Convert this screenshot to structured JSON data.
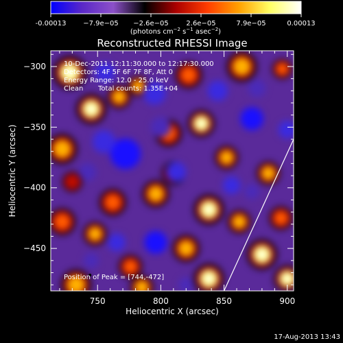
{
  "chart_data": {
    "type": "heatmap",
    "title": "Reconstructed RHESSI Image",
    "xlabel": "Heliocentric X (arcsec)",
    "ylabel": "Heliocentric Y (arcsec)",
    "xlim": [
      713,
      905
    ],
    "ylim": [
      -485,
      -287
    ],
    "xticks": [
      750,
      800,
      850,
      900
    ],
    "yticks": [
      -300,
      -350,
      -400,
      -450
    ],
    "colorbar": {
      "min": -0.00013,
      "max": 0.00013,
      "tick_labels": [
        "-0.00013",
        "−7.9e−05",
        "−2.6e−05",
        "2.6e−05",
        "7.9e−05",
        "0.00013"
      ],
      "unit_parts": [
        "(photons cm",
        "−2",
        " s",
        "−1",
        " asec",
        "−2",
        ")"
      ],
      "colors": [
        "#0000ff",
        "#5a28c8",
        "#8c50c8",
        "#000000",
        "#aa0000",
        "#ff3c00",
        "#ffa000",
        "#ffff64",
        "#ffffff"
      ]
    },
    "annotations": [
      "10-Dec-2011 12:11:30.000 to 12:17:30.000",
      "Detectors: 4F 5F 6F 7F 8F, Att 0",
      "Energy Range: 12.0 - 25.0 keV",
      "Clean",
      "Total counts: 1.35E+04"
    ],
    "peak_label": "Position of Peak = [744,-472]",
    "peak": [
      744,
      -472
    ],
    "limb_line": [
      [
        850,
        -485
      ],
      [
        905,
        -360
      ]
    ],
    "blobs": [
      {
        "x": 728,
        "y": -305,
        "v": 0.9,
        "r": 10
      },
      {
        "x": 745,
        "y": -335,
        "v": 1.0,
        "r": 9
      },
      {
        "x": 767,
        "y": -325,
        "v": 0.8,
        "r": 7
      },
      {
        "x": 782,
        "y": -316,
        "v": 0.7,
        "r": 6
      },
      {
        "x": 822,
        "y": -307,
        "v": 0.5,
        "r": 8
      },
      {
        "x": 864,
        "y": -300,
        "v": 0.8,
        "r": 9
      },
      {
        "x": 896,
        "y": -302,
        "v": 0.6,
        "r": 6
      },
      {
        "x": 806,
        "y": -355,
        "v": 0.6,
        "r": 8
      },
      {
        "x": 832,
        "y": -347,
        "v": 0.9,
        "r": 8
      },
      {
        "x": 852,
        "y": -375,
        "v": 0.8,
        "r": 7
      },
      {
        "x": 885,
        "y": -388,
        "v": 0.8,
        "r": 7
      },
      {
        "x": 722,
        "y": -368,
        "v": 0.8,
        "r": 9
      },
      {
        "x": 762,
        "y": -412,
        "v": 0.6,
        "r": 8
      },
      {
        "x": 748,
        "y": -438,
        "v": 0.7,
        "r": 7
      },
      {
        "x": 722,
        "y": -428,
        "v": 0.5,
        "r": 8
      },
      {
        "x": 796,
        "y": -405,
        "v": 0.7,
        "r": 8
      },
      {
        "x": 810,
        "y": -388,
        "v": 0.55,
        "r": 7
      },
      {
        "x": 838,
        "y": -418,
        "v": 0.9,
        "r": 9
      },
      {
        "x": 862,
        "y": -428,
        "v": 0.7,
        "r": 7
      },
      {
        "x": 880,
        "y": -455,
        "v": 1.0,
        "r": 9
      },
      {
        "x": 820,
        "y": -450,
        "v": 0.7,
        "r": 8
      },
      {
        "x": 776,
        "y": -465,
        "v": 0.6,
        "r": 7
      },
      {
        "x": 838,
        "y": -475,
        "v": 0.9,
        "r": 9
      },
      {
        "x": 733,
        "y": -480,
        "v": 0.8,
        "r": 9
      },
      {
        "x": 785,
        "y": -482,
        "v": 0.7,
        "r": 7
      },
      {
        "x": 900,
        "y": -475,
        "v": 0.9,
        "r": 8
      },
      {
        "x": 895,
        "y": -425,
        "v": 0.6,
        "r": 7
      },
      {
        "x": 730,
        "y": -395,
        "v": 0.35,
        "r": 6
      },
      {
        "x": 772,
        "y": -372,
        "v": -1.0,
        "r": 12
      },
      {
        "x": 755,
        "y": -362,
        "v": -0.8,
        "r": 9
      },
      {
        "x": 795,
        "y": -322,
        "v": -0.7,
        "r": 9
      },
      {
        "x": 756,
        "y": -305,
        "v": -0.6,
        "r": 8
      },
      {
        "x": 845,
        "y": -320,
        "v": -0.7,
        "r": 8
      },
      {
        "x": 872,
        "y": -343,
        "v": -0.9,
        "r": 9
      },
      {
        "x": 900,
        "y": -352,
        "v": -0.6,
        "r": 7
      },
      {
        "x": 812,
        "y": -387,
        "v": -0.6,
        "r": 8
      },
      {
        "x": 856,
        "y": -398,
        "v": -0.7,
        "r": 7
      },
      {
        "x": 796,
        "y": -445,
        "v": -0.9,
        "r": 9
      },
      {
        "x": 765,
        "y": -445,
        "v": -0.6,
        "r": 7
      },
      {
        "x": 872,
        "y": -403,
        "v": -0.5,
        "r": 6
      },
      {
        "x": 742,
        "y": -387,
        "v": -0.4,
        "r": 7
      },
      {
        "x": 800,
        "y": -350,
        "v": -0.55,
        "r": 8
      },
      {
        "x": 820,
        "y": -480,
        "v": -0.4,
        "r": 6
      },
      {
        "x": 745,
        "y": -460,
        "v": -0.45,
        "r": 6
      },
      {
        "x": 876,
        "y": -318,
        "v": -0.5,
        "r": 7
      }
    ]
  },
  "footer": {
    "timestamp": "17-Aug-2013 13:43"
  }
}
